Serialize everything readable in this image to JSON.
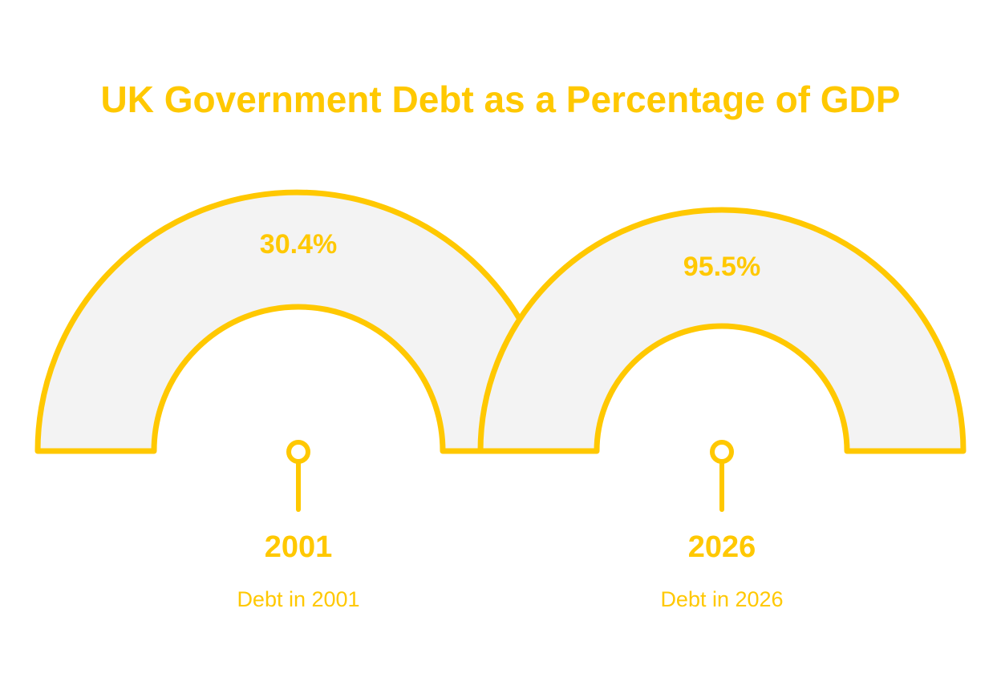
{
  "header": {
    "title": "UK Government Debt as a Percentage of GDP"
  },
  "items": [
    {
      "value_label": "30.4%",
      "year": "2001",
      "caption": "Debt in 2001"
    },
    {
      "value_label": "95.5%",
      "year": "2026",
      "caption": "Debt in 2026"
    }
  ]
}
